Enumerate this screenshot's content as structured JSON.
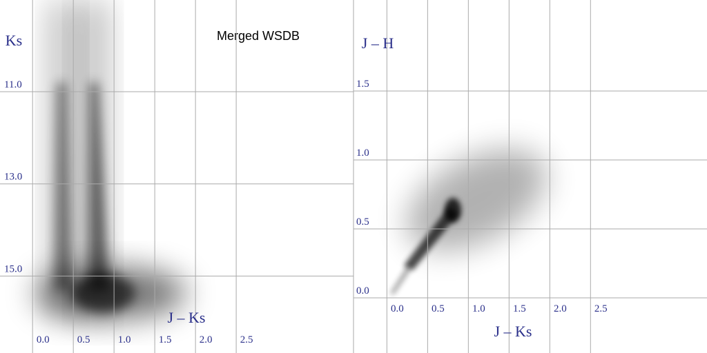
{
  "chart_data": [
    {
      "type": "density",
      "title": "Merged WSDB",
      "x_label": "J – Ks",
      "y_label": "Ks",
      "xlim": [
        -0.4,
        3.94
      ],
      "ylim": [
        16.67,
        9.01
      ],
      "xticks": [
        {
          "value": 0,
          "label": "0.0"
        },
        {
          "value": 0.5,
          "label": "0.5"
        },
        {
          "value": 1,
          "label": "1.0"
        },
        {
          "value": 1.5,
          "label": "1.5"
        },
        {
          "value": 2,
          "label": "2.0"
        },
        {
          "value": 2.5,
          "label": "2.5"
        }
      ],
      "yticks": [
        {
          "value": 11,
          "label": "11.0"
        },
        {
          "value": 13,
          "label": "13.0"
        },
        {
          "value": 15,
          "label": "15.0"
        }
      ],
      "grid": true
    },
    {
      "type": "density",
      "x_label": "J – Ks",
      "y_label": "J – H",
      "xlim": [
        -0.41,
        3.93
      ],
      "ylim": [
        -0.4,
        2.16
      ],
      "xticks": [
        {
          "value": 0,
          "label": "0.0"
        },
        {
          "value": 0.5,
          "label": "0.5"
        },
        {
          "value": 1,
          "label": "1.0"
        },
        {
          "value": 1.5,
          "label": "1.5"
        },
        {
          "value": 2,
          "label": "2.0"
        },
        {
          "value": 2.5,
          "label": "2.5"
        }
      ],
      "yticks": [
        {
          "value": 0,
          "label": "0.0"
        },
        {
          "value": 0.5,
          "label": "0.5"
        },
        {
          "value": 1,
          "label": "1.0"
        },
        {
          "value": 1.5,
          "label": "1.5"
        }
      ],
      "grid": true
    }
  ]
}
